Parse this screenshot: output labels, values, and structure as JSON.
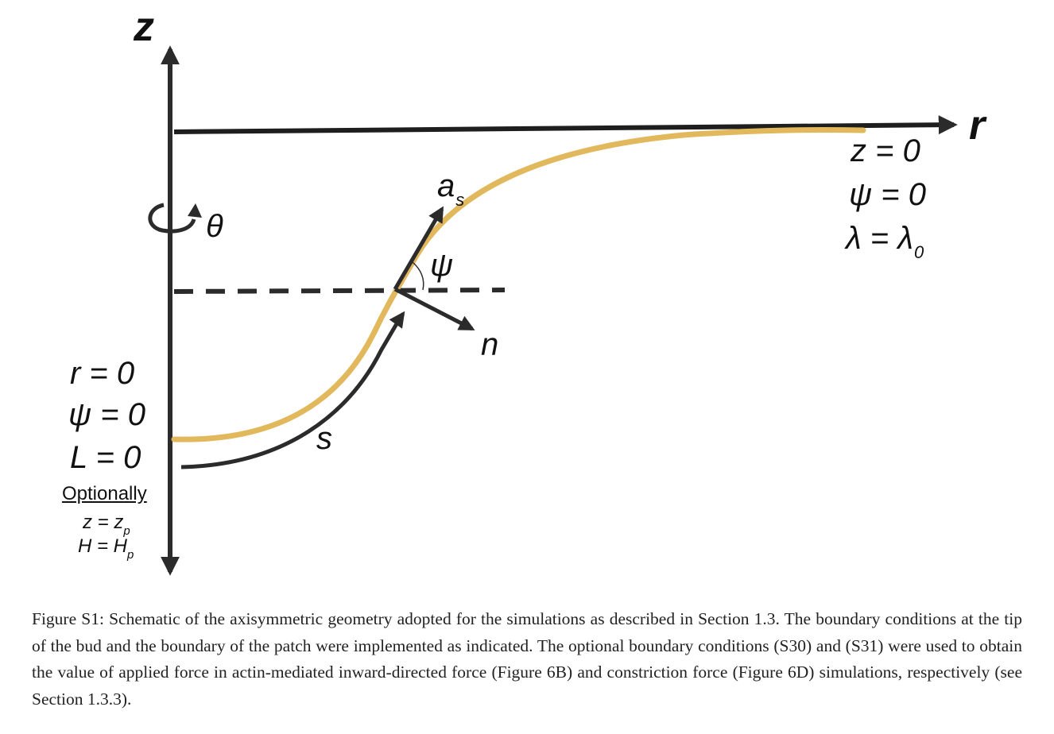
{
  "labels": {
    "z_axis": "z",
    "r_axis": "r",
    "theta": "θ",
    "as_main": "a",
    "as_sub": "s",
    "psi_angle": "ψ",
    "n_vector": "n",
    "s_arc": "s"
  },
  "boundary_far": {
    "line1": "z = 0",
    "line2": "ψ = 0",
    "line3_main": "λ = λ",
    "line3_sub": "0"
  },
  "boundary_tip": {
    "line1": "r = 0",
    "line2": "ψ = 0",
    "line3": "L = 0"
  },
  "optional": {
    "heading": "Optionally",
    "line1_main": "z = z",
    "line1_sub": "p",
    "line2_main": "H = H",
    "line2_sub": "p"
  },
  "colors": {
    "membrane": "#E2B85C",
    "axis": "#2b2b2b"
  },
  "caption": "Figure S1: Schematic of the axisymmetric geometry adopted for the simulations as described in Section 1.3. The boundary conditions at the tip of the bud and the boundary of the patch were implemented as indicated. The optional boundary conditions (S30) and (S31) were used to obtain the value of applied force in actin-mediated inward-directed force (Figure 6B) and constriction force (Figure 6D) simulations, respectively (see Section 1.3.3)."
}
